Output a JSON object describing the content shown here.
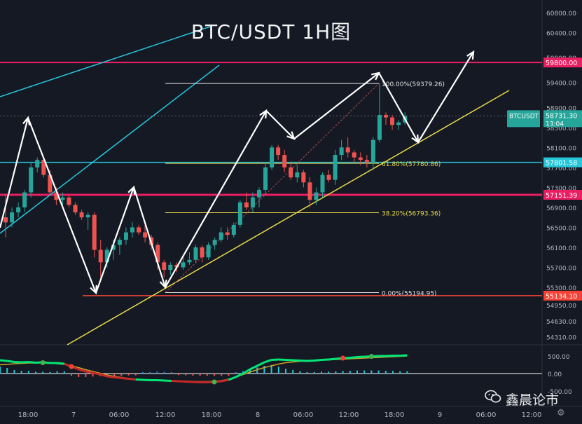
{
  "title": "BTC/USDT  1H图",
  "watermark": "鑫晨论市",
  "symbol": "BTCUSDT",
  "chart_data": {
    "type": "candlestick",
    "price_axis": {
      "ticks": [
        60800,
        60400,
        59900,
        59400,
        58900,
        58500,
        58100,
        57700,
        57300,
        56900,
        56500,
        56100,
        55700,
        55300,
        54950,
        54630,
        54310
      ],
      "ylim": [
        54150,
        61050
      ]
    },
    "time_axis": {
      "labels": [
        "18:00",
        "7",
        "06:00",
        "12:00",
        "18:00",
        "8",
        "06:00",
        "12:00",
        "18:00",
        "9",
        "06:00",
        "12:00"
      ]
    },
    "price_tags": [
      {
        "label": "59800.00",
        "value": 59800,
        "color": "#e91e63"
      },
      {
        "label": "58731.30",
        "sub": "13:04",
        "value": 58731.3,
        "color": "#26a69a"
      },
      {
        "label": "57801.58",
        "value": 57801.58,
        "color": "#26c6da"
      },
      {
        "label": "57151.39",
        "value": 57151.39,
        "color": "#e91e63"
      },
      {
        "label": "55134.10",
        "value": 55134.1,
        "color": "#f44336"
      }
    ],
    "fib_levels": [
      {
        "label": "100.00%(59379.26)",
        "value": 59379.26
      },
      {
        "label": "61.80%(57780.86)",
        "value": 57780.86
      },
      {
        "label": "38.20%(56793.36)",
        "value": 56793.36
      },
      {
        "label": "0.00%(55194.95)",
        "value": 55194.95
      }
    ],
    "candles": [
      [
        56700,
        57150,
        56300,
        56600
      ],
      [
        56600,
        56900,
        56500,
        56800
      ],
      [
        56800,
        57000,
        56700,
        56900
      ],
      [
        56900,
        57250,
        56800,
        57200
      ],
      [
        57200,
        57800,
        57100,
        57700
      ],
      [
        57700,
        57900,
        57600,
        57850
      ],
      [
        57850,
        57900,
        57500,
        57550
      ],
      [
        57550,
        57650,
        57150,
        57200
      ],
      [
        57200,
        57300,
        56950,
        57050
      ],
      [
        57050,
        57200,
        56900,
        57100
      ],
      [
        57100,
        57150,
        56900,
        56950
      ],
      [
        56950,
        57000,
        56750,
        56800
      ],
      [
        56800,
        56850,
        56650,
        56700
      ],
      [
        56700,
        56800,
        56450,
        56750
      ],
      [
        56750,
        56800,
        55900,
        56050
      ],
      [
        56050,
        56250,
        55450,
        55800
      ],
      [
        55800,
        56100,
        55700,
        56050
      ],
      [
        56050,
        56250,
        55850,
        56150
      ],
      [
        56150,
        56300,
        55950,
        56250
      ],
      [
        56250,
        56500,
        56150,
        56400
      ],
      [
        56400,
        56600,
        56300,
        56500
      ],
      [
        56500,
        56550,
        56350,
        56400
      ],
      [
        56400,
        56600,
        56200,
        56300
      ],
      [
        56300,
        56350,
        56050,
        56150
      ],
      [
        56150,
        56200,
        55650,
        55800
      ],
      [
        55800,
        55850,
        55500,
        55650
      ],
      [
        55650,
        55800,
        55550,
        55750
      ],
      [
        55750,
        55800,
        55600,
        55700
      ],
      [
        55700,
        55900,
        55650,
        55800
      ],
      [
        55800,
        56000,
        55750,
        55850
      ],
      [
        55850,
        56150,
        55800,
        56100
      ],
      [
        56100,
        56150,
        55800,
        55900
      ],
      [
        55900,
        56200,
        55850,
        56150
      ],
      [
        56150,
        56300,
        56050,
        56250
      ],
      [
        56250,
        56500,
        56200,
        56400
      ],
      [
        56400,
        56500,
        56250,
        56350
      ],
      [
        56350,
        56600,
        56300,
        56550
      ],
      [
        56550,
        57050,
        56500,
        57000
      ],
      [
        57000,
        57200,
        56850,
        56900
      ],
      [
        56900,
        57200,
        56800,
        57100
      ],
      [
        57100,
        57300,
        56900,
        57250
      ],
      [
        57250,
        57800,
        57150,
        57700
      ],
      [
        57700,
        58150,
        57650,
        58100
      ],
      [
        58100,
        58150,
        57850,
        57950
      ],
      [
        57950,
        58050,
        57600,
        57700
      ],
      [
        57700,
        57800,
        57450,
        57500
      ],
      [
        57500,
        57750,
        57400,
        57600
      ],
      [
        57600,
        57650,
        57300,
        57400
      ],
      [
        57400,
        57500,
        56900,
        57050
      ],
      [
        57050,
        57300,
        56950,
        57200
      ],
      [
        57200,
        57600,
        57100,
        57550
      ],
      [
        57550,
        57650,
        57400,
        57450
      ],
      [
        57450,
        58050,
        57350,
        57950
      ],
      [
        57950,
        58250,
        57850,
        58100
      ],
      [
        58100,
        58300,
        57900,
        58000
      ],
      [
        58000,
        58050,
        57800,
        57900
      ],
      [
        57900,
        58000,
        57750,
        57850
      ],
      [
        57850,
        57950,
        57700,
        57800
      ],
      [
        57800,
        58300,
        57650,
        58250
      ],
      [
        58250,
        59379,
        58200,
        58750
      ],
      [
        58750,
        58800,
        58550,
        58700
      ],
      [
        58700,
        58750,
        58450,
        58550
      ],
      [
        58550,
        58650,
        58450,
        58600
      ],
      [
        58600,
        58800,
        58550,
        58731
      ]
    ],
    "indicator": {
      "ticks": [
        "500.00",
        "0.00",
        "-500.00"
      ],
      "fast": [
        380,
        360,
        330,
        320,
        330,
        310,
        320,
        300,
        300,
        280,
        200,
        120,
        60,
        20,
        -20,
        -80,
        -110,
        -130,
        -150,
        -170,
        -180,
        -190,
        -190,
        -200,
        -210,
        -220,
        -230,
        -240,
        -250,
        -250,
        -240,
        -220,
        -180,
        -100,
        0,
        120,
        220,
        320,
        390,
        400,
        390,
        380,
        370,
        360,
        370,
        390,
        400,
        420,
        440,
        450,
        470,
        480,
        490,
        500,
        500,
        510,
        510,
        520
      ],
      "slow": [
        250,
        260,
        280,
        290,
        300,
        300,
        310,
        300,
        280,
        260,
        220,
        170,
        110,
        60,
        10,
        -40,
        -80,
        -110,
        -140,
        -160,
        -180,
        -190,
        -200,
        -205,
        -210,
        -215,
        -220,
        -225,
        -230,
        -230,
        -220,
        -200,
        -160,
        -100,
        -30,
        40,
        110,
        170,
        220,
        270,
        310,
        330,
        350,
        360,
        370,
        380,
        390,
        400,
        410,
        420,
        430,
        440,
        450,
        460,
        470,
        480,
        490,
        500
      ],
      "dots": [
        {
          "i": 6,
          "v": 310,
          "c": "#4caf50"
        },
        {
          "i": 10,
          "v": 200,
          "c": "#f44336"
        },
        {
          "i": 30,
          "v": -240,
          "c": "#4caf50"
        },
        {
          "i": 48,
          "v": 440,
          "c": "#f44336"
        },
        {
          "i": 52,
          "v": 490,
          "c": "#4caf50"
        }
      ]
    }
  }
}
